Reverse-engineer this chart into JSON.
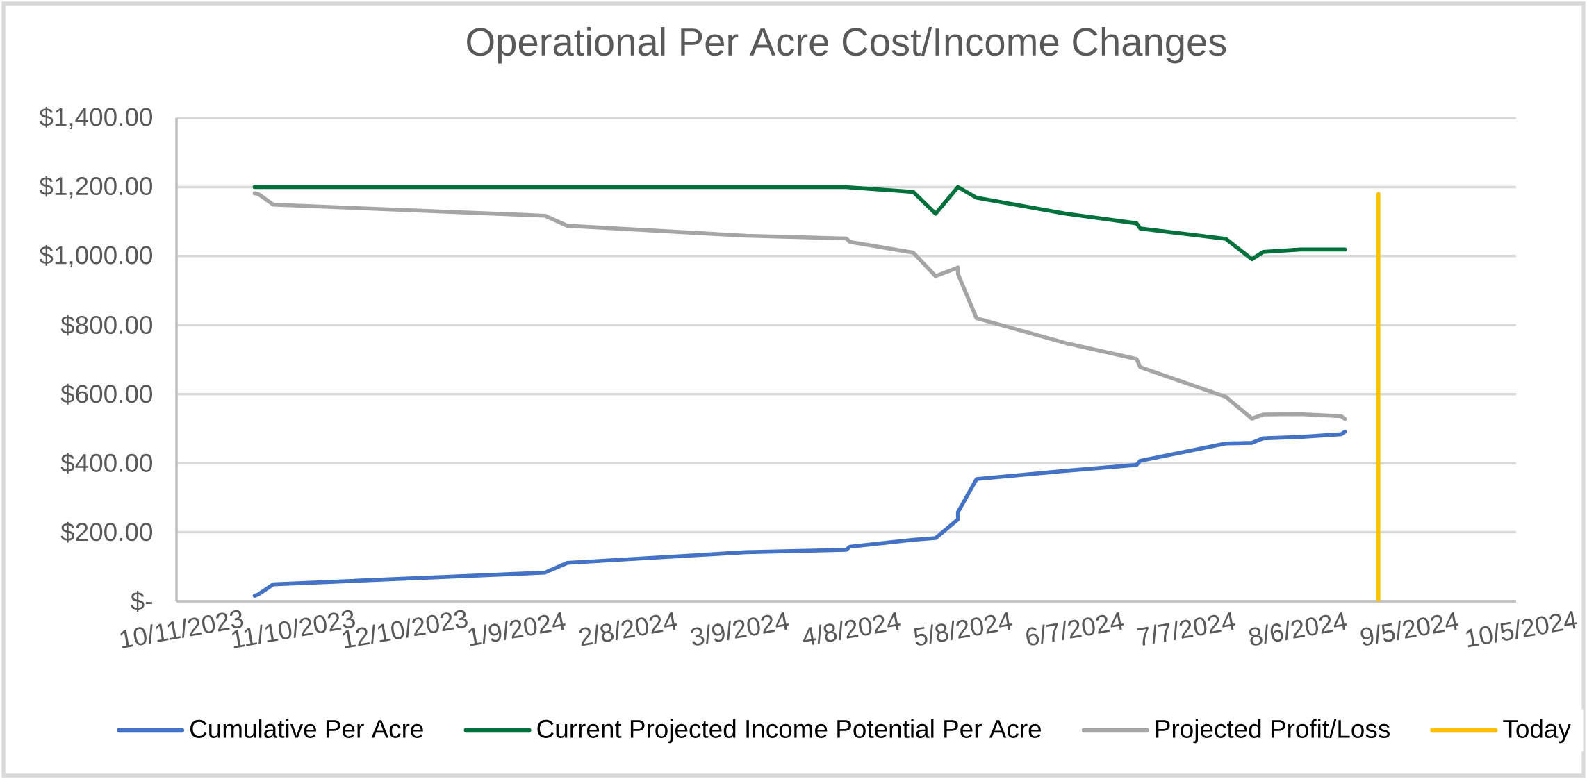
{
  "chart_data": {
    "type": "line",
    "title": "Operational Per Acre Cost/Income Changes",
    "x": [
      "2023-11-01",
      "2023-11-02",
      "2023-11-06",
      "2024-01-18",
      "2024-01-24",
      "2024-03-12",
      "2024-04-08",
      "2024-04-09",
      "2024-04-26",
      "2024-05-02",
      "2024-05-08",
      "2024-05-08",
      "2024-05-13",
      "2024-06-06",
      "2024-06-25",
      "2024-06-26",
      "2024-07-19",
      "2024-07-26",
      "2024-07-29",
      "2024-08-08",
      "2024-08-19",
      "2024-08-20"
    ],
    "series": [
      {
        "name": "Cumulative Per Acre",
        "color": "#4472c4",
        "values": [
          16,
          20,
          49,
          83,
          111,
          142,
          149,
          158,
          178,
          183,
          237,
          258,
          354,
          378,
          395,
          407,
          457,
          459,
          472,
          476,
          484,
          491
        ]
      },
      {
        "name": "Current Projected Income Potential Per Acre",
        "color": "#00703c",
        "values": [
          1200,
          1200,
          1200,
          1200,
          1200,
          1200,
          1200,
          1199,
          1186,
          1123,
          1200,
          1200,
          1169,
          1123,
          1095,
          1080,
          1050,
          991,
          1012,
          1019,
          1019,
          1019
        ]
      },
      {
        "name": "Projected Profit/Loss",
        "color": "#a5a5a5",
        "values": [
          1182,
          1180,
          1149,
          1117,
          1088,
          1059,
          1051,
          1041,
          1010,
          942,
          967,
          948,
          820,
          748,
          702,
          678,
          592,
          529,
          541,
          542,
          536,
          528
        ]
      },
      {
        "name": "Today",
        "color": "#ffc000",
        "x": [
          "2024-08-29",
          "2024-08-29"
        ],
        "values": [
          0,
          1180
        ]
      }
    ],
    "xlim": [
      "2023-10-11",
      "2024-10-05"
    ],
    "xticks": [
      {
        "value": "2023-10-11",
        "label": "10/11/2023"
      },
      {
        "value": "2023-11-10",
        "label": "11/10/2023"
      },
      {
        "value": "2023-12-10",
        "label": "12/10/2023"
      },
      {
        "value": "2024-01-09",
        "label": "1/9/2024"
      },
      {
        "value": "2024-02-08",
        "label": "2/8/2024"
      },
      {
        "value": "2024-03-09",
        "label": "3/9/2024"
      },
      {
        "value": "2024-04-08",
        "label": "4/8/2024"
      },
      {
        "value": "2024-05-08",
        "label": "5/8/2024"
      },
      {
        "value": "2024-06-07",
        "label": "6/7/2024"
      },
      {
        "value": "2024-07-07",
        "label": "7/7/2024"
      },
      {
        "value": "2024-08-06",
        "label": "8/6/2024"
      },
      {
        "value": "2024-09-05",
        "label": "9/5/2024"
      },
      {
        "value": "2024-10-05",
        "label": "10/5/2024"
      }
    ],
    "ylim": [
      0,
      1400
    ],
    "yticks": [
      {
        "value": 0,
        "label": "$-"
      },
      {
        "value": 200,
        "label": "$200.00"
      },
      {
        "value": 400,
        "label": "$400.00"
      },
      {
        "value": 600,
        "label": "$600.00"
      },
      {
        "value": 800,
        "label": "$800.00"
      },
      {
        "value": 1000,
        "label": "$1,000.00"
      },
      {
        "value": 1200,
        "label": "$1,200.00"
      },
      {
        "value": 1400,
        "label": "$1,400.00"
      }
    ],
    "grid": "y",
    "legend": "bottom"
  }
}
